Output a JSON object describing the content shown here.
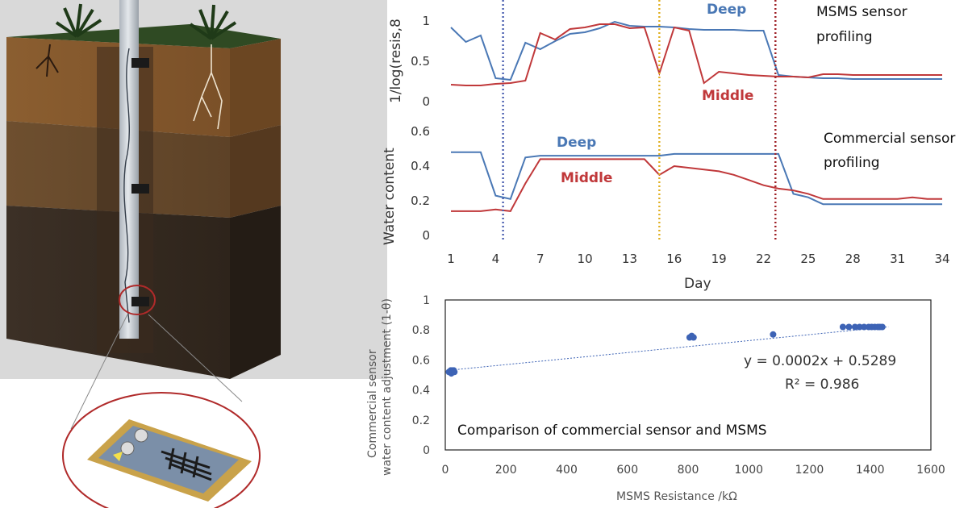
{
  "chart_data": [
    {
      "type": "line",
      "ylabel": "1/log(resis,8",
      "ylim": [
        0,
        1
      ],
      "yticks": [
        "0",
        "0.5",
        "1"
      ],
      "x": [
        1,
        2,
        3,
        4,
        5,
        6,
        7,
        8,
        9,
        10,
        11,
        12,
        13,
        14,
        15,
        16,
        17,
        18,
        19,
        20,
        21,
        22,
        23,
        24,
        25,
        26,
        27,
        28,
        29,
        30,
        31,
        32,
        33,
        34
      ],
      "series": [
        {
          "name": "Deep",
          "color": "#4a78b5",
          "values": [
            0.92,
            0.74,
            0.82,
            0.29,
            0.27,
            0.73,
            0.65,
            0.75,
            0.84,
            0.86,
            0.91,
            0.99,
            0.94,
            0.93,
            0.93,
            0.92,
            0.9,
            0.89,
            0.89,
            0.89,
            0.88,
            0.88,
            0.33,
            0.31,
            0.3,
            0.29,
            0.29,
            0.28,
            0.28,
            0.28,
            0.28,
            0.28,
            0.28,
            0.28
          ]
        },
        {
          "name": "Middle",
          "color": "#c0383a",
          "values": [
            0.21,
            0.2,
            0.2,
            0.22,
            0.23,
            0.26,
            0.85,
            0.77,
            0.9,
            0.92,
            0.96,
            0.96,
            0.91,
            0.92,
            0.35,
            0.92,
            0.88,
            0.23,
            0.37,
            0.35,
            0.33,
            0.32,
            0.31,
            0.31,
            0.3,
            0.34,
            0.34,
            0.33,
            0.33,
            0.33,
            0.33,
            0.33,
            0.33,
            0.33
          ]
        }
      ],
      "annotations": [
        "MSMS sensor",
        "profiling"
      ]
    },
    {
      "type": "line",
      "xlabel": "Day",
      "ylabel": "Water content",
      "ylim": [
        0,
        0.6
      ],
      "yticks": [
        "0",
        "0.2",
        "0.4",
        "0.6"
      ],
      "xticks": [
        "1",
        "4",
        "7",
        "10",
        "13",
        "16",
        "19",
        "22",
        "25",
        "28",
        "31",
        "34"
      ],
      "x": [
        1,
        2,
        3,
        4,
        5,
        6,
        7,
        8,
        9,
        10,
        11,
        12,
        13,
        14,
        15,
        16,
        17,
        18,
        19,
        20,
        21,
        22,
        23,
        24,
        25,
        26,
        27,
        28,
        29,
        30,
        31,
        32,
        33,
        34
      ],
      "series": [
        {
          "name": "Deep",
          "color": "#4a78b5",
          "values": [
            0.48,
            0.48,
            0.48,
            0.23,
            0.21,
            0.45,
            0.46,
            0.46,
            0.46,
            0.46,
            0.46,
            0.46,
            0.46,
            0.46,
            0.46,
            0.47,
            0.47,
            0.47,
            0.47,
            0.47,
            0.47,
            0.47,
            0.47,
            0.24,
            0.22,
            0.18,
            0.18,
            0.18,
            0.18,
            0.18,
            0.18,
            0.18,
            0.18,
            0.18
          ]
        },
        {
          "name": "Middle",
          "color": "#c0383a",
          "values": [
            0.14,
            0.14,
            0.14,
            0.15,
            0.14,
            0.3,
            0.44,
            0.44,
            0.44,
            0.44,
            0.44,
            0.44,
            0.44,
            0.44,
            0.35,
            0.4,
            0.39,
            0.38,
            0.37,
            0.35,
            0.32,
            0.29,
            0.27,
            0.26,
            0.24,
            0.21,
            0.21,
            0.21,
            0.21,
            0.21,
            0.21,
            0.22,
            0.21,
            0.21
          ]
        }
      ],
      "markers": [
        {
          "x": 4.5,
          "color": "#4b5fb0"
        },
        {
          "x": 15,
          "color": "#e0b020"
        },
        {
          "x": 22.8,
          "color": "#9e1f25"
        }
      ],
      "annotations": [
        "Commercial sensor",
        "profiling"
      ]
    },
    {
      "type": "scatter",
      "xlabel": "MSMS Resistance /kΩ",
      "ylabel": "Commercial sensor water content adjustment (1-θ)",
      "xlim": [
        0,
        1600
      ],
      "ylim": [
        0,
        1
      ],
      "xticks": [
        "0",
        "200",
        "400",
        "600",
        "800",
        "1000",
        "1200",
        "1400",
        "1600"
      ],
      "yticks": [
        "0",
        "0.2",
        "0.4",
        "0.6",
        "0.8",
        "1"
      ],
      "points": [
        [
          12,
          0.52
        ],
        [
          15,
          0.52
        ],
        [
          18,
          0.53
        ],
        [
          20,
          0.51
        ],
        [
          22,
          0.53
        ],
        [
          24,
          0.52
        ],
        [
          26,
          0.52
        ],
        [
          28,
          0.53
        ],
        [
          30,
          0.52
        ],
        [
          805,
          0.75
        ],
        [
          812,
          0.76
        ],
        [
          818,
          0.75
        ],
        [
          1080,
          0.77
        ],
        [
          1310,
          0.82
        ],
        [
          1330,
          0.82
        ],
        [
          1350,
          0.82
        ],
        [
          1365,
          0.82
        ],
        [
          1380,
          0.82
        ],
        [
          1395,
          0.82
        ],
        [
          1405,
          0.82
        ],
        [
          1415,
          0.82
        ],
        [
          1425,
          0.82
        ],
        [
          1432,
          0.82
        ],
        [
          1440,
          0.82
        ]
      ],
      "trendline": {
        "slope": 0.0002,
        "intercept": 0.5289
      },
      "equation": "y = 0.0002x + 0.5289",
      "r2": "R² = 0.986",
      "caption": "Comparison of commercial sensor and MSMS",
      "color": "#3d63b5"
    }
  ],
  "labels": {
    "c1_deep": "Deep",
    "c1_middle": "Middle",
    "c2_deep": "Deep",
    "c2_middle": "Middle"
  },
  "colors": {
    "deep": "#4a78b5",
    "middle": "#c0383a",
    "soil_top": "#8a5a2b",
    "soil_mid": "#6b4a2a",
    "soil_deep": "#3a2e24",
    "grass": "#2e4a22",
    "tube": "#c9cfd6",
    "highlight": "#b02a2a"
  }
}
